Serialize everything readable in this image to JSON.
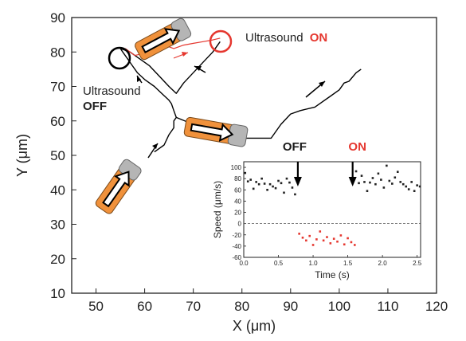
{
  "chart_data": [
    {
      "type": "line",
      "xlabel": "X (μm)",
      "ylabel": "Y (μm)",
      "xlim": [
        45,
        120
      ],
      "ylim": [
        10,
        90
      ],
      "x_ticks": [
        "50",
        "60",
        "70",
        "80",
        "90",
        "100",
        "110",
        "120"
      ],
      "y_ticks": [
        "10",
        "20",
        "30",
        "40",
        "50",
        "60",
        "70",
        "80",
        "90"
      ],
      "grid": false,
      "series": [
        {
          "color": "#000000",
          "x": [
            62,
            64,
            65,
            66,
            66,
            66.5,
            66,
            65.5,
            65,
            63.5,
            62,
            60,
            58.5,
            57.5,
            56.5,
            55.5,
            55
          ],
          "y": [
            51,
            53,
            56,
            58,
            60,
            61,
            63,
            65,
            66,
            68,
            70,
            72,
            74,
            76,
            78,
            80,
            81
          ]
        },
        {
          "color": "#000000",
          "x": [
            55,
            57,
            59,
            61,
            63,
            65,
            66.5,
            68,
            70,
            72,
            74,
            75.5
          ],
          "y": [
            81,
            80,
            78,
            76,
            73,
            70,
            68,
            71,
            74,
            77,
            80,
            83
          ]
        },
        {
          "color": "#000000",
          "x": [
            66.5,
            70,
            74,
            78,
            82,
            86,
            88,
            90,
            92,
            95,
            98,
            100,
            101,
            102,
            103.5,
            104.5
          ],
          "y": [
            61,
            59,
            57,
            55,
            55,
            55,
            59,
            62,
            63,
            64,
            67,
            69,
            71,
            71.5,
            74,
            75
          ]
        },
        {
          "color": "#e5372f",
          "x": [
            56,
            58,
            61,
            64,
            66,
            68,
            70,
            72,
            74,
            75.5
          ],
          "y": [
            81,
            79,
            80,
            82,
            81,
            82,
            82.5,
            83,
            83.5,
            84
          ]
        }
      ],
      "annotations": {
        "ultrasound_on_prefix": "Ultrasound",
        "ultrasound_on_state": "ON",
        "ultrasound_off_prefix": "Ultrasound",
        "ultrasound_off_state": "OFF"
      },
      "colors": {
        "off": "#1a1a1a",
        "on": "#e5372f",
        "particle": "#f0913b",
        "cap": "#b5b5b5"
      }
    },
    {
      "type": "scatter",
      "xlabel": "Time (s)",
      "ylabel": "Speed (μm/s)",
      "xlim": [
        0,
        2.55
      ],
      "ylim": [
        -60,
        110
      ],
      "x_ticks": [
        "0.0",
        "0.5",
        "1.0",
        "1.5",
        "2.0",
        "2.5"
      ],
      "y_ticks": [
        "100",
        "80",
        "60",
        "40",
        "20",
        "0",
        "-20",
        "-40",
        "-60"
      ],
      "reference_line": 0,
      "arrow_labels": [
        "OFF",
        "ON"
      ],
      "arrow_times": [
        0.78,
        1.57
      ],
      "series": [
        {
          "color": "#222222",
          "x": [
            0.02,
            0.06,
            0.1,
            0.14,
            0.18,
            0.22,
            0.26,
            0.3,
            0.34,
            0.38,
            0.42,
            0.46,
            0.5,
            0.54,
            0.58,
            0.62,
            0.66,
            0.7,
            0.74,
            1.62,
            1.66,
            1.7,
            1.74,
            1.78,
            1.82,
            1.86,
            1.9,
            1.94,
            1.98,
            2.02,
            2.06,
            2.1,
            2.14,
            2.18,
            2.22,
            2.26,
            2.3,
            2.34,
            2.38,
            2.42,
            2.46,
            2.5,
            2.54
          ],
          "y": [
            90,
            75,
            78,
            62,
            74,
            70,
            80,
            71,
            60,
            70,
            66,
            63,
            76,
            72,
            55,
            80,
            73,
            64,
            52,
            93,
            72,
            85,
            74,
            58,
            73,
            81,
            70,
            89,
            78,
            64,
            103,
            76,
            71,
            82,
            92,
            74,
            70,
            66,
            61,
            74,
            58,
            68,
            66
          ]
        },
        {
          "color": "#e5372f",
          "x": [
            0.8,
            0.85,
            0.9,
            0.95,
            1.0,
            1.05,
            1.1,
            1.15,
            1.2,
            1.25,
            1.3,
            1.35,
            1.4,
            1.45,
            1.5,
            1.55,
            1.6
          ],
          "y": [
            -18,
            -25,
            -30,
            -22,
            -38,
            -28,
            -14,
            -30,
            -24,
            -35,
            -27,
            -32,
            -21,
            -37,
            -26,
            -33,
            -38
          ]
        }
      ]
    }
  ]
}
